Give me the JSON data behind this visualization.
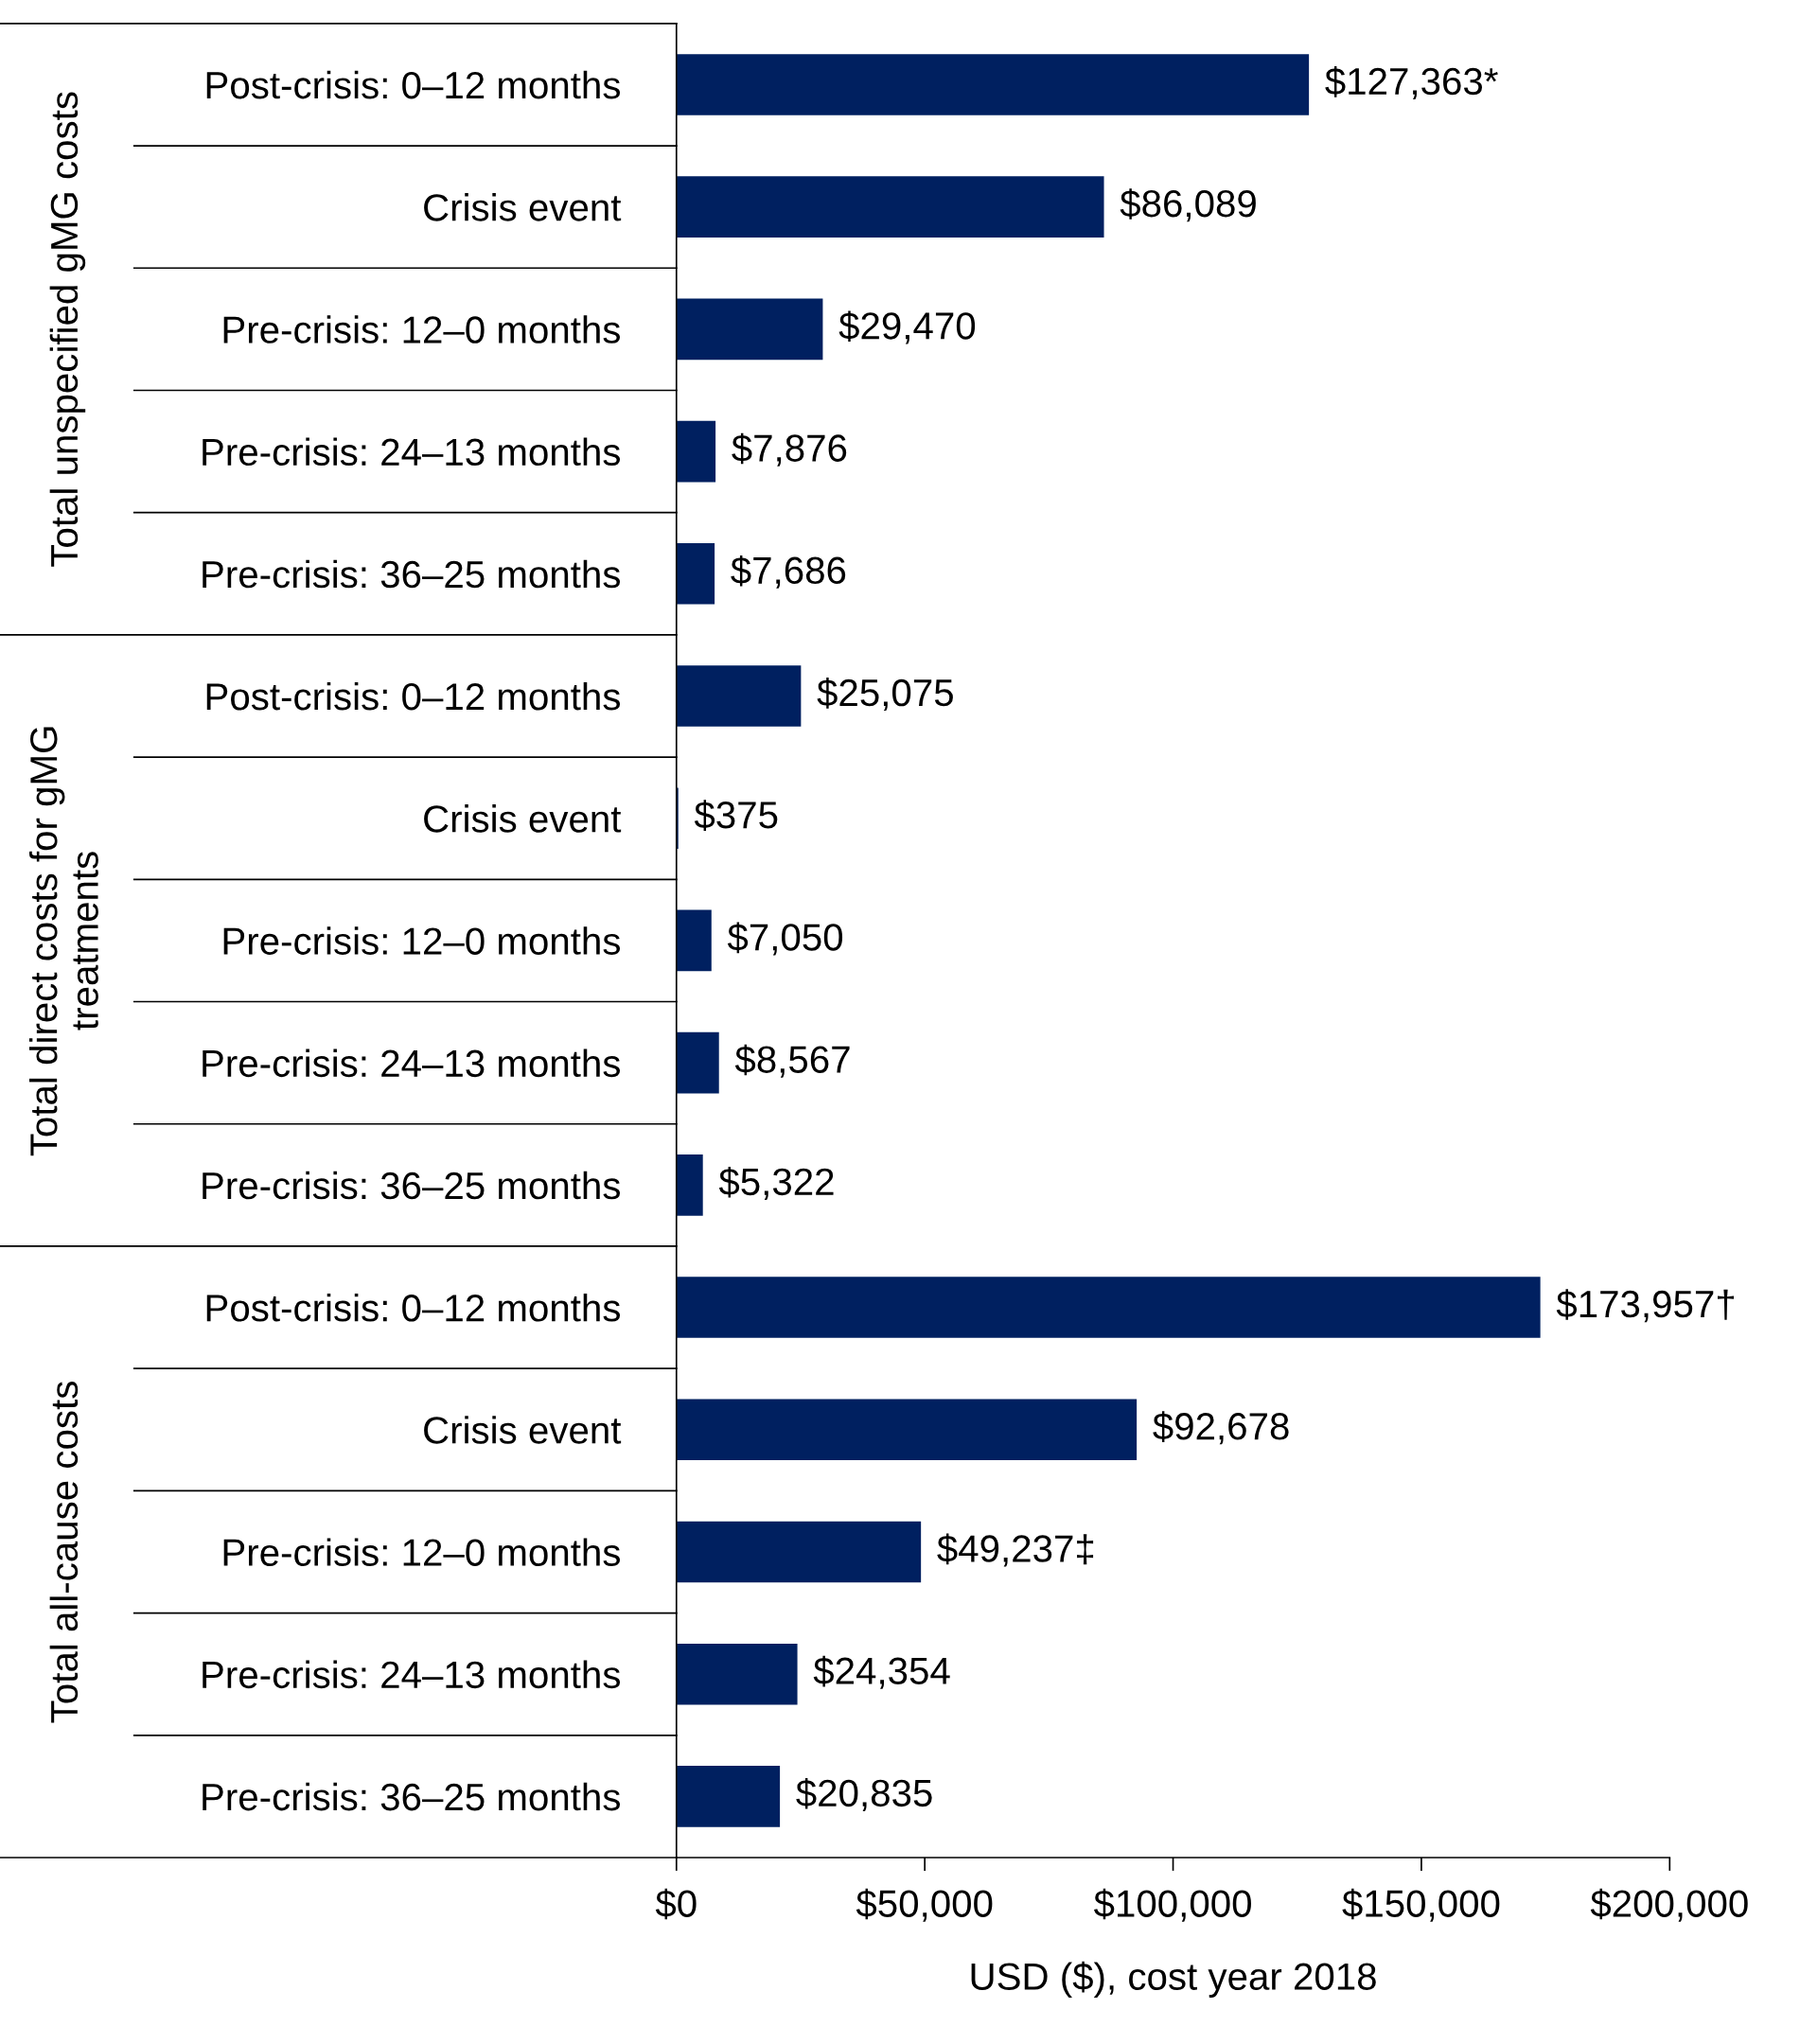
{
  "chart_data": {
    "type": "bar",
    "orientation": "horizontal",
    "categories": [
      "Post-crisis: 0–12 months",
      "Crisis event",
      "Pre-crisis: 12–0 months",
      "Pre-crisis: 24–13 months",
      "Pre-crisis: 36–25 months",
      "Post-crisis: 0–12 months",
      "Crisis event",
      "Pre-crisis: 12–0 months",
      "Pre-crisis: 24–13 months",
      "Pre-crisis: 36–25 months",
      "Post-crisis: 0–12 months",
      "Crisis event",
      "Pre-crisis: 12–0 months",
      "Pre-crisis: 24–13 months",
      "Pre-crisis: 36–25 months"
    ],
    "values": [
      127363,
      86089,
      29470,
      7876,
      7686,
      25075,
      375,
      7050,
      8567,
      5322,
      173957,
      92678,
      49237,
      24354,
      20835
    ],
    "value_labels": [
      "$127,363*",
      "$86,089",
      "$29,470",
      "$7,876",
      "$7,686",
      "$25,075",
      "$375",
      "$7,050",
      "$8,567",
      "$5,322",
      "$173,957†",
      "$92,678",
      "$49,237‡",
      "$24,354",
      "$20,835"
    ],
    "color": "#002060",
    "xlabel": "USD ($), cost year 2018",
    "xlim": [
      0,
      200000
    ],
    "xticks": [
      {
        "value": 0,
        "label": "$0"
      },
      {
        "value": 50000,
        "label": "$50,000"
      },
      {
        "value": 100000,
        "label": "$100,000"
      },
      {
        "value": 150000,
        "label": "$150,000"
      },
      {
        "value": 200000,
        "label": "$200,000"
      }
    ],
    "annotations": [
      "Total unspecified gMG costs",
      "Total direct costs for gMG\ntreatments",
      "Total all-cause costs"
    ],
    "grid": false,
    "legend": false
  }
}
